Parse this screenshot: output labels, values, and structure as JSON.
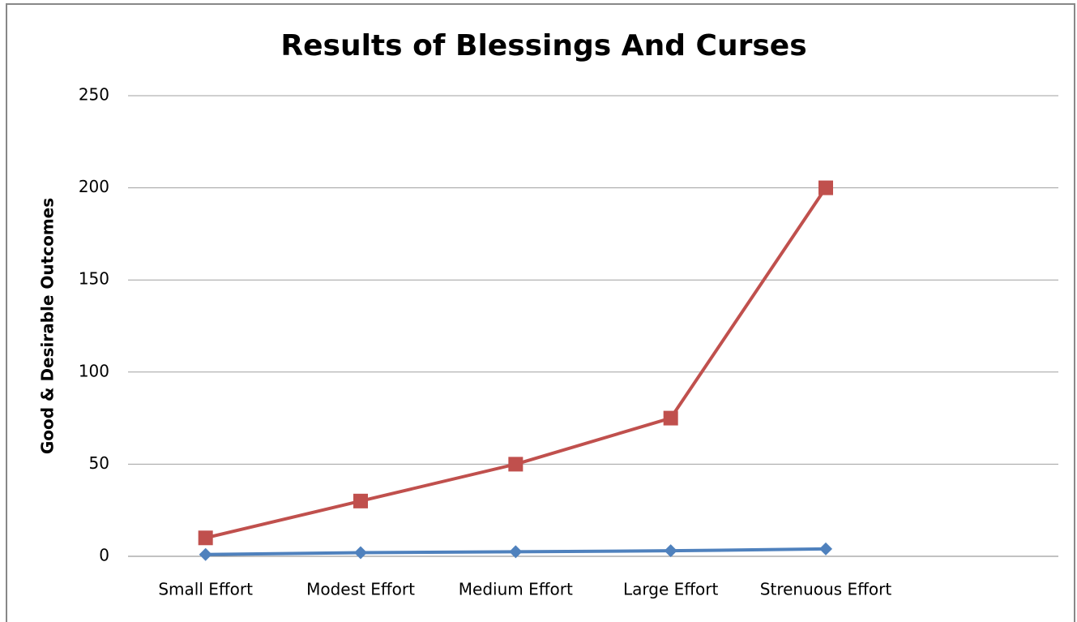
{
  "chart_data": {
    "type": "line",
    "title": "Results of Blessings And Curses",
    "y_label": "Good & Desirable Outcomes",
    "categories": [
      "Small Effort",
      "Modest Effort",
      "Medium Effort",
      "Large Effort",
      "Strenuous Effort",
      null
    ],
    "series": [
      {
        "color": "#4f81bd",
        "marker": "diamond",
        "values": [
          1,
          2,
          2.5,
          3,
          4,
          null
        ]
      },
      {
        "color": "#c0504d",
        "marker": "square",
        "values": [
          10,
          30,
          50,
          75,
          200,
          null
        ]
      }
    ],
    "ylim": [
      0,
      250
    ],
    "yticks": [
      0,
      50,
      100,
      150,
      200,
      250
    ],
    "grid": true
  }
}
